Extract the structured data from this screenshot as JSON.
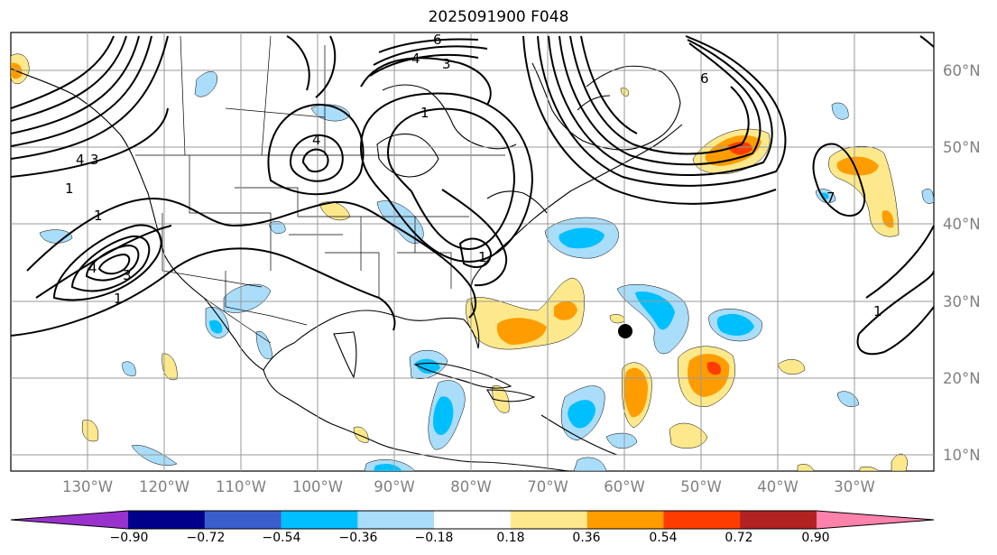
{
  "title": "2025091900 F048",
  "map": {
    "lon_labels": [
      "130°W",
      "120°W",
      "110°W",
      "100°W",
      "90°W",
      "80°W",
      "70°W",
      "60°W",
      "50°W",
      "40°W",
      "30°W"
    ],
    "lat_labels": [
      "60°N",
      "50°N",
      "40°N",
      "30°N",
      "20°N",
      "10°N"
    ],
    "contour_labels": [
      "6",
      "4",
      "3",
      "1",
      "4",
      "1",
      "1",
      "4",
      "3",
      "1",
      "7",
      "4",
      "3",
      "1",
      "1",
      "6"
    ],
    "marker": "black-dot"
  },
  "colorbar": {
    "ticks": [
      "−0.90",
      "−0.72",
      "−0.54",
      "−0.36",
      "−0.18",
      "0.18",
      "0.36",
      "0.54",
      "0.72",
      "0.90"
    ],
    "colors": [
      "#9932cc",
      "#00008b",
      "#3a5fcd",
      "#00bfff",
      "#a9ddf9",
      "#ffffff",
      "#fde98c",
      "#ff9d00",
      "#ff3c00",
      "#b22222",
      "#ff82ab"
    ]
  }
}
